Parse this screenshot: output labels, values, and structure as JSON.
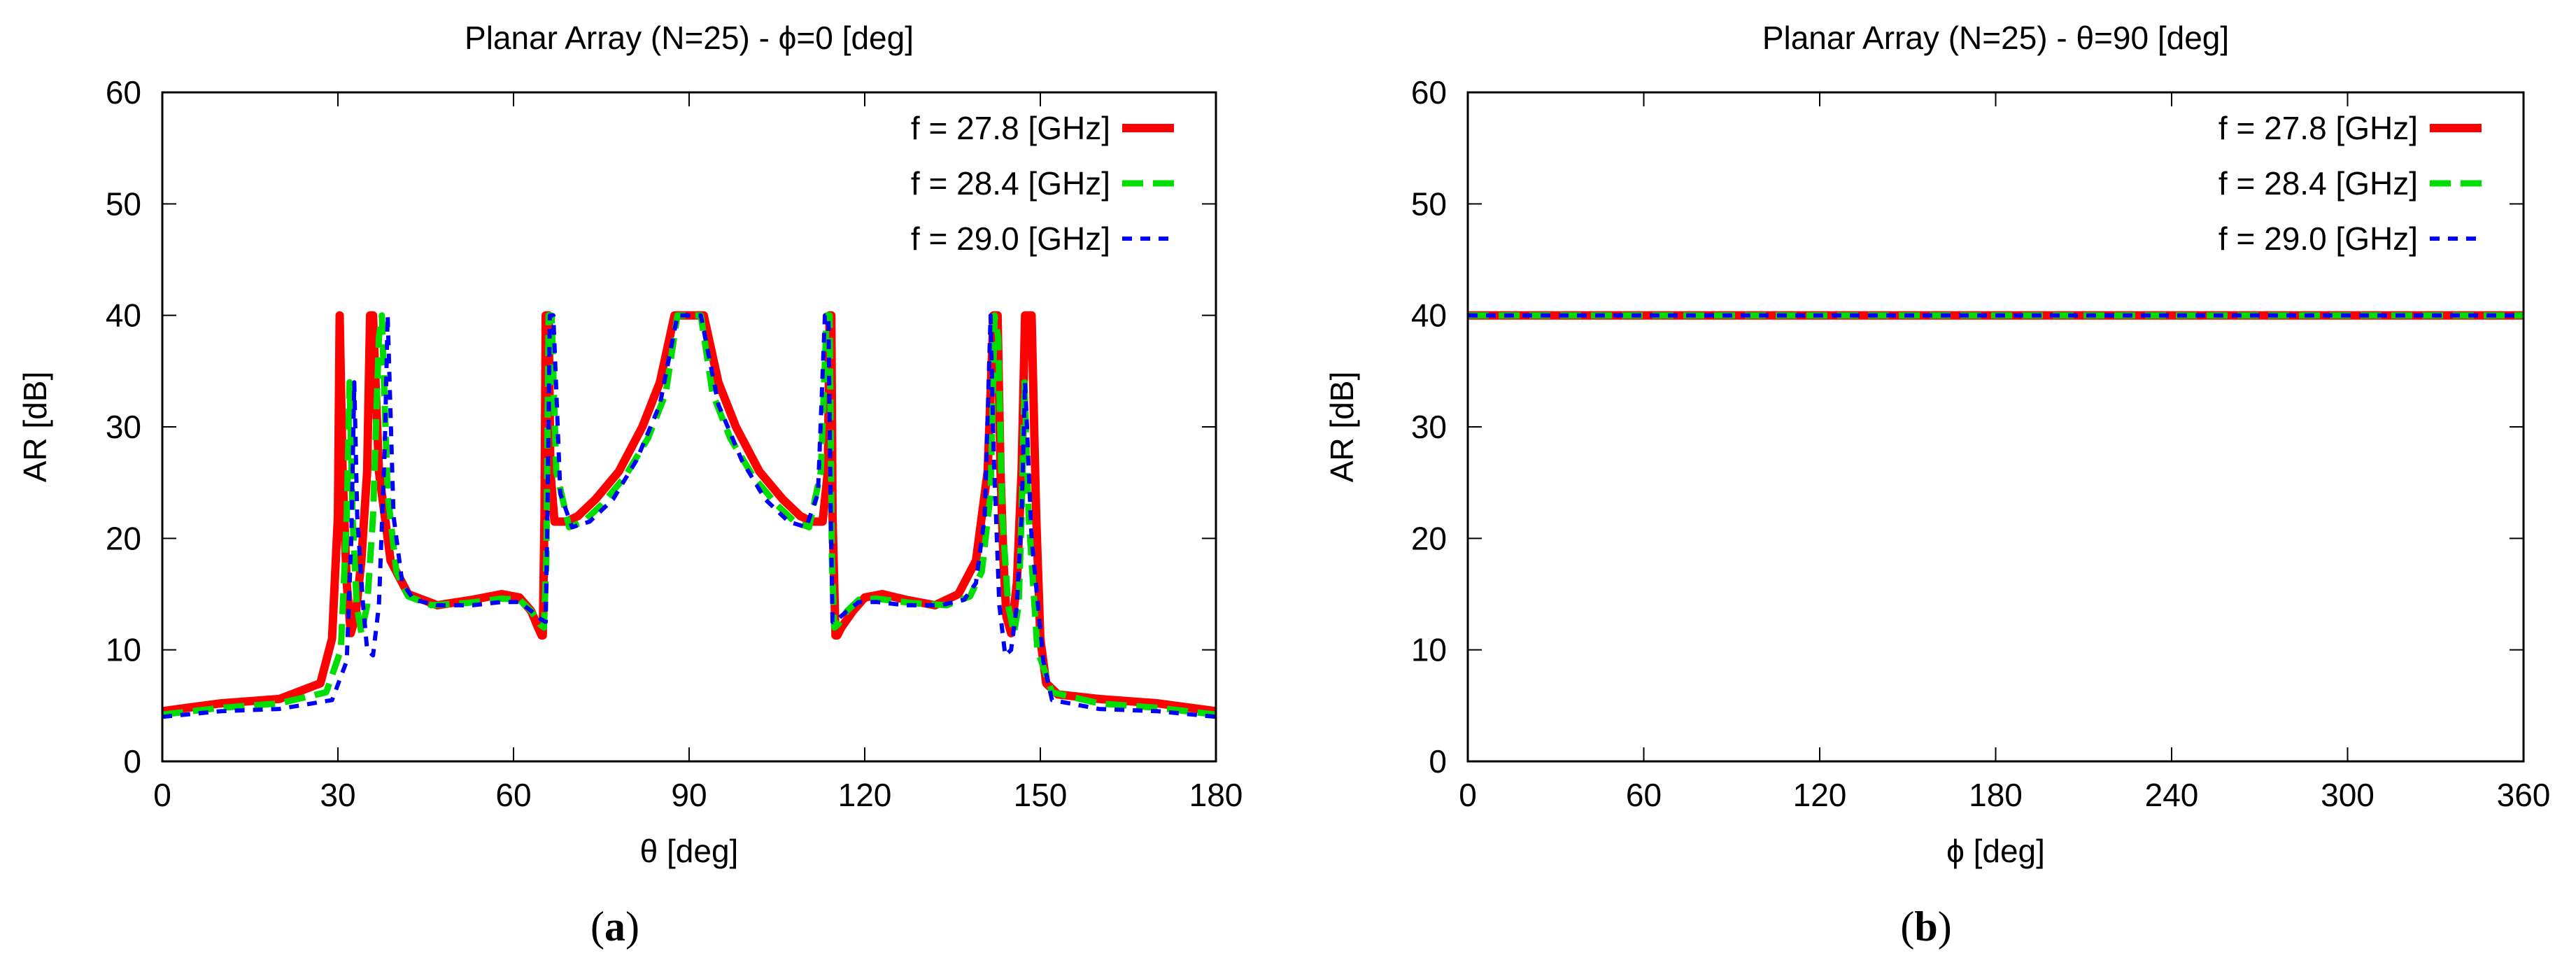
{
  "chart_data": [
    {
      "type": "line",
      "panel": "a",
      "title": "Planar Array (N=25) - ϕ=0 [deg]",
      "xlabel": "θ [deg]",
      "ylabel": "AR [dB]",
      "xlim": [
        0,
        180
      ],
      "ylim": [
        0,
        60
      ],
      "xticks": [
        0,
        30,
        60,
        90,
        120,
        150,
        180
      ],
      "yticks": [
        0,
        10,
        20,
        30,
        40,
        50,
        60
      ],
      "legend_position": "top-right",
      "caption": {
        "open": "(",
        "letter": "a",
        "close": ")"
      },
      "series": [
        {
          "name": "f = 27.8 [GHz]",
          "color": "#ff0000",
          "style": "solid",
          "x": [
            0,
            10,
            20,
            27,
            29,
            30,
            30.3,
            30.8,
            31.5,
            32.2,
            33,
            34,
            35,
            35.5,
            36,
            37,
            39,
            42,
            47,
            53,
            58,
            61,
            63,
            64.2,
            64.8,
            65,
            65.3,
            65.5,
            66,
            66.3,
            67,
            69,
            71,
            74,
            78,
            82,
            85,
            87.5,
            88.5,
            91.5,
            92.5,
            95,
            98,
            102,
            106,
            109,
            111,
            112.8,
            113.7,
            114,
            114.3,
            114.5,
            115,
            115.3,
            116,
            118,
            120,
            123,
            127,
            132,
            136,
            139,
            141,
            142,
            142.7,
            143.2,
            143.7,
            144.2,
            145,
            146,
            146.8,
            147.4,
            148,
            148.5,
            149.3,
            150,
            151,
            153,
            160,
            170,
            180
          ],
          "values": [
            4.5,
            5.2,
            5.6,
            7,
            11,
            22,
            40,
            26,
            16,
            11.5,
            13,
            18,
            26,
            40,
            40,
            26,
            18,
            15,
            14,
            14.5,
            15,
            14.7,
            13.5,
            12,
            11.3,
            11.3,
            22,
            40,
            40,
            26,
            21.5,
            21.5,
            22,
            23.5,
            26,
            30,
            34,
            40,
            40,
            40,
            40,
            34,
            30,
            26,
            23.5,
            22,
            21.5,
            21.5,
            26,
            40,
            40,
            22,
            11.3,
            11.3,
            12,
            13.5,
            14.7,
            15,
            14.5,
            14,
            15,
            18,
            26,
            40,
            40,
            26,
            18,
            13,
            11.5,
            16,
            26,
            40,
            40,
            40,
            22,
            11,
            7,
            6,
            5.6,
            5.2,
            4.5
          ]
        },
        {
          "name": "f = 28.4 [GHz]",
          "color": "#00dd00",
          "style": "dashed",
          "x": [
            0,
            10,
            20,
            28,
            30.5,
            31.5,
            32,
            32.5,
            33.2,
            34,
            35,
            36,
            37,
            37.5,
            38.5,
            40,
            42,
            46,
            52,
            58,
            61,
            63,
            64.5,
            65.2,
            65.6,
            66,
            66.5,
            67.3,
            69.5,
            72,
            75,
            79,
            83,
            86,
            88,
            92,
            94,
            97,
            101,
            105,
            108,
            110.5,
            112.5,
            113.5,
            114,
            114.4,
            114.8,
            115.5,
            117,
            119,
            122,
            128,
            134,
            138,
            140,
            141.5,
            142.2,
            142.8,
            143.5,
            144.5,
            145.5,
            146.3,
            146.8,
            147.3,
            148,
            149.5,
            152,
            160,
            170,
            180
          ],
          "values": [
            4.2,
            4.8,
            5.2,
            6.2,
            10,
            22,
            34,
            22,
            14,
            11.5,
            14,
            22,
            38,
            40,
            24,
            17,
            14.8,
            14,
            14.2,
            14.6,
            14.5,
            13.5,
            12.3,
            12,
            18,
            40,
            40,
            26,
            21,
            21.5,
            23,
            25.5,
            29,
            33,
            40,
            40,
            33,
            29,
            25.5,
            23,
            21.5,
            21,
            26,
            40,
            40,
            18,
            12,
            12.3,
            13.5,
            14.5,
            14.6,
            14.2,
            14,
            14.8,
            17,
            24,
            40,
            38,
            22,
            14,
            11.5,
            14,
            22,
            34,
            22,
            10,
            6.2,
            5.2,
            4.8,
            4.2
          ]
        },
        {
          "name": "f = 29.0 [GHz]",
          "color": "#0000ff",
          "style": "dotted",
          "x": [
            0,
            10,
            20,
            29,
            31.5,
            32.3,
            32.8,
            33.3,
            34.3,
            35,
            36,
            37,
            38,
            38.5,
            39.5,
            41,
            43,
            47,
            53,
            58,
            61,
            63,
            64.5,
            65.5,
            65.8,
            66.2,
            66.8,
            68,
            70,
            73,
            77,
            81,
            85,
            88,
            92,
            95,
            99,
            103,
            107,
            110,
            112,
            113.2,
            113.8,
            114.2,
            114.5,
            115.5,
            117,
            119,
            122,
            127,
            133,
            137,
            139,
            140.5,
            141.5,
            142,
            143,
            144,
            145,
            146,
            146.8,
            147.4,
            148.5,
            150.5,
            152,
            160,
            170,
            180
          ],
          "values": [
            4.0,
            4.5,
            4.7,
            5.5,
            9,
            20,
            34,
            22,
            14,
            10,
            9.5,
            14,
            28,
            40,
            22,
            16,
            14.5,
            14,
            14,
            14.3,
            14.3,
            13.5,
            12.8,
            12.5,
            22,
            40,
            40,
            24,
            21,
            21.5,
            23.5,
            27,
            32,
            40,
            40,
            32,
            27,
            23.5,
            21.5,
            21,
            24,
            40,
            40,
            22,
            12.5,
            12.8,
            13.5,
            14.3,
            14.3,
            14,
            14,
            14.5,
            16,
            22,
            40,
            28,
            14,
            9.5,
            10,
            14,
            22,
            34,
            20,
            9,
            5.5,
            4.7,
            4.5,
            4.0
          ]
        }
      ]
    },
    {
      "type": "line",
      "panel": "b",
      "title": "Planar Array (N=25) - θ=90 [deg]",
      "xlabel": "ϕ [deg]",
      "ylabel": "AR [dB]",
      "xlim": [
        0,
        360
      ],
      "ylim": [
        0,
        60
      ],
      "xticks": [
        0,
        60,
        120,
        180,
        240,
        300,
        360
      ],
      "yticks": [
        0,
        10,
        20,
        30,
        40,
        50,
        60
      ],
      "legend_position": "top-right",
      "caption": {
        "open": "(",
        "letter": "b",
        "close": ")"
      },
      "series": [
        {
          "name": "f = 27.8 [GHz]",
          "color": "#ff0000",
          "style": "solid",
          "x": [
            0,
            360
          ],
          "values": [
            40,
            40
          ]
        },
        {
          "name": "f = 28.4 [GHz]",
          "color": "#00dd00",
          "style": "dashed",
          "x": [
            0,
            360
          ],
          "values": [
            40,
            40
          ]
        },
        {
          "name": "f = 29.0 [GHz]",
          "color": "#0000ff",
          "style": "dotted",
          "x": [
            0,
            360
          ],
          "values": [
            40,
            40
          ]
        }
      ]
    }
  ]
}
